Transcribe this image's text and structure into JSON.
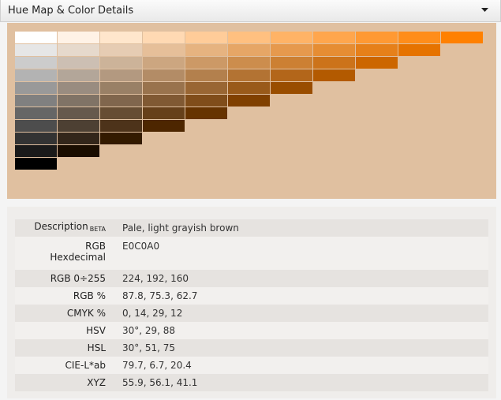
{
  "header": {
    "title": "Hue Map & Color Details"
  },
  "details": {
    "rows": [
      {
        "label": "Description",
        "badge": "BETA",
        "value": "Pale, light grayish brown"
      },
      {
        "label": "RGB",
        "label2": "Hexdecimal",
        "value": "E0C0A0"
      },
      {
        "label": "RGB 0÷255",
        "value": "224, 192, 160"
      },
      {
        "label": "RGB %",
        "value": "87.8, 75.3, 62.7"
      },
      {
        "label": "CMYK %",
        "value": "0, 14, 29, 12"
      },
      {
        "label": "HSV",
        "value": "30°, 29, 88"
      },
      {
        "label": "HSL",
        "value": "30°, 51, 75"
      },
      {
        "label": "CIE-L*ab",
        "value": "79.7, 6.7, 20.4"
      },
      {
        "label": "XYZ",
        "value": "55.9, 56.1, 41.1"
      }
    ]
  }
}
